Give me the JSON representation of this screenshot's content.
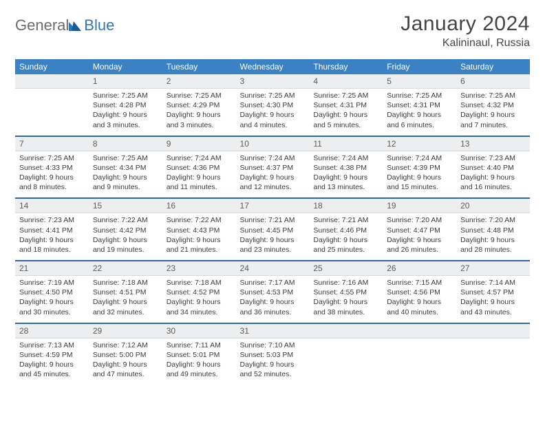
{
  "brand": {
    "part1": "General",
    "part2": "Blue"
  },
  "title": "January 2024",
  "location": "Kalininaul, Russia",
  "colors": {
    "header_bg": "#3b82c4",
    "header_text": "#ffffff",
    "daynum_bg": "#eceef0",
    "daynum_text": "#5b5b5b",
    "row_divider": "#2e6aa8",
    "body_text": "#3a3a3a",
    "title_text": "#454545",
    "logo_gray": "#6b6b6b",
    "logo_blue": "#2e77bb"
  },
  "day_names": [
    "Sunday",
    "Monday",
    "Tuesday",
    "Wednesday",
    "Thursday",
    "Friday",
    "Saturday"
  ],
  "weeks": [
    {
      "nums": [
        "",
        "1",
        "2",
        "3",
        "4",
        "5",
        "6"
      ],
      "cells": [
        null,
        {
          "sr": "Sunrise: 7:25 AM",
          "ss": "Sunset: 4:28 PM",
          "d1": "Daylight: 9 hours",
          "d2": "and 3 minutes."
        },
        {
          "sr": "Sunrise: 7:25 AM",
          "ss": "Sunset: 4:29 PM",
          "d1": "Daylight: 9 hours",
          "d2": "and 3 minutes."
        },
        {
          "sr": "Sunrise: 7:25 AM",
          "ss": "Sunset: 4:30 PM",
          "d1": "Daylight: 9 hours",
          "d2": "and 4 minutes."
        },
        {
          "sr": "Sunrise: 7:25 AM",
          "ss": "Sunset: 4:31 PM",
          "d1": "Daylight: 9 hours",
          "d2": "and 5 minutes."
        },
        {
          "sr": "Sunrise: 7:25 AM",
          "ss": "Sunset: 4:31 PM",
          "d1": "Daylight: 9 hours",
          "d2": "and 6 minutes."
        },
        {
          "sr": "Sunrise: 7:25 AM",
          "ss": "Sunset: 4:32 PM",
          "d1": "Daylight: 9 hours",
          "d2": "and 7 minutes."
        }
      ]
    },
    {
      "nums": [
        "7",
        "8",
        "9",
        "10",
        "11",
        "12",
        "13"
      ],
      "cells": [
        {
          "sr": "Sunrise: 7:25 AM",
          "ss": "Sunset: 4:33 PM",
          "d1": "Daylight: 9 hours",
          "d2": "and 8 minutes."
        },
        {
          "sr": "Sunrise: 7:25 AM",
          "ss": "Sunset: 4:34 PM",
          "d1": "Daylight: 9 hours",
          "d2": "and 9 minutes."
        },
        {
          "sr": "Sunrise: 7:24 AM",
          "ss": "Sunset: 4:36 PM",
          "d1": "Daylight: 9 hours",
          "d2": "and 11 minutes."
        },
        {
          "sr": "Sunrise: 7:24 AM",
          "ss": "Sunset: 4:37 PM",
          "d1": "Daylight: 9 hours",
          "d2": "and 12 minutes."
        },
        {
          "sr": "Sunrise: 7:24 AM",
          "ss": "Sunset: 4:38 PM",
          "d1": "Daylight: 9 hours",
          "d2": "and 13 minutes."
        },
        {
          "sr": "Sunrise: 7:24 AM",
          "ss": "Sunset: 4:39 PM",
          "d1": "Daylight: 9 hours",
          "d2": "and 15 minutes."
        },
        {
          "sr": "Sunrise: 7:23 AM",
          "ss": "Sunset: 4:40 PM",
          "d1": "Daylight: 9 hours",
          "d2": "and 16 minutes."
        }
      ]
    },
    {
      "nums": [
        "14",
        "15",
        "16",
        "17",
        "18",
        "19",
        "20"
      ],
      "cells": [
        {
          "sr": "Sunrise: 7:23 AM",
          "ss": "Sunset: 4:41 PM",
          "d1": "Daylight: 9 hours",
          "d2": "and 18 minutes."
        },
        {
          "sr": "Sunrise: 7:22 AM",
          "ss": "Sunset: 4:42 PM",
          "d1": "Daylight: 9 hours",
          "d2": "and 19 minutes."
        },
        {
          "sr": "Sunrise: 7:22 AM",
          "ss": "Sunset: 4:43 PM",
          "d1": "Daylight: 9 hours",
          "d2": "and 21 minutes."
        },
        {
          "sr": "Sunrise: 7:21 AM",
          "ss": "Sunset: 4:45 PM",
          "d1": "Daylight: 9 hours",
          "d2": "and 23 minutes."
        },
        {
          "sr": "Sunrise: 7:21 AM",
          "ss": "Sunset: 4:46 PM",
          "d1": "Daylight: 9 hours",
          "d2": "and 25 minutes."
        },
        {
          "sr": "Sunrise: 7:20 AM",
          "ss": "Sunset: 4:47 PM",
          "d1": "Daylight: 9 hours",
          "d2": "and 26 minutes."
        },
        {
          "sr": "Sunrise: 7:20 AM",
          "ss": "Sunset: 4:48 PM",
          "d1": "Daylight: 9 hours",
          "d2": "and 28 minutes."
        }
      ]
    },
    {
      "nums": [
        "21",
        "22",
        "23",
        "24",
        "25",
        "26",
        "27"
      ],
      "cells": [
        {
          "sr": "Sunrise: 7:19 AM",
          "ss": "Sunset: 4:50 PM",
          "d1": "Daylight: 9 hours",
          "d2": "and 30 minutes."
        },
        {
          "sr": "Sunrise: 7:18 AM",
          "ss": "Sunset: 4:51 PM",
          "d1": "Daylight: 9 hours",
          "d2": "and 32 minutes."
        },
        {
          "sr": "Sunrise: 7:18 AM",
          "ss": "Sunset: 4:52 PM",
          "d1": "Daylight: 9 hours",
          "d2": "and 34 minutes."
        },
        {
          "sr": "Sunrise: 7:17 AM",
          "ss": "Sunset: 4:53 PM",
          "d1": "Daylight: 9 hours",
          "d2": "and 36 minutes."
        },
        {
          "sr": "Sunrise: 7:16 AM",
          "ss": "Sunset: 4:55 PM",
          "d1": "Daylight: 9 hours",
          "d2": "and 38 minutes."
        },
        {
          "sr": "Sunrise: 7:15 AM",
          "ss": "Sunset: 4:56 PM",
          "d1": "Daylight: 9 hours",
          "d2": "and 40 minutes."
        },
        {
          "sr": "Sunrise: 7:14 AM",
          "ss": "Sunset: 4:57 PM",
          "d1": "Daylight: 9 hours",
          "d2": "and 43 minutes."
        }
      ]
    },
    {
      "nums": [
        "28",
        "29",
        "30",
        "31",
        "",
        "",
        ""
      ],
      "cells": [
        {
          "sr": "Sunrise: 7:13 AM",
          "ss": "Sunset: 4:59 PM",
          "d1": "Daylight: 9 hours",
          "d2": "and 45 minutes."
        },
        {
          "sr": "Sunrise: 7:12 AM",
          "ss": "Sunset: 5:00 PM",
          "d1": "Daylight: 9 hours",
          "d2": "and 47 minutes."
        },
        {
          "sr": "Sunrise: 7:11 AM",
          "ss": "Sunset: 5:01 PM",
          "d1": "Daylight: 9 hours",
          "d2": "and 49 minutes."
        },
        {
          "sr": "Sunrise: 7:10 AM",
          "ss": "Sunset: 5:03 PM",
          "d1": "Daylight: 9 hours",
          "d2": "and 52 minutes."
        },
        null,
        null,
        null
      ]
    }
  ]
}
